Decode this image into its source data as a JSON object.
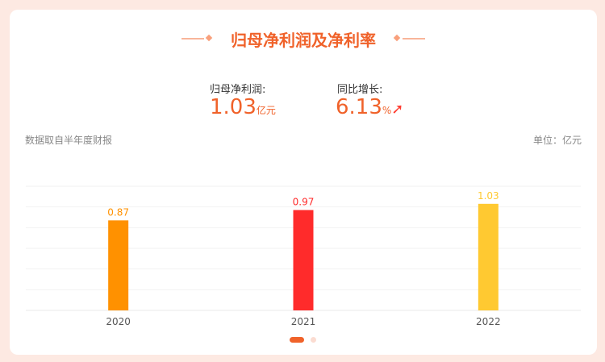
{
  "title": "归母净利润及净利率",
  "stats": {
    "profit_label": "归母净利润:",
    "profit_value": "1.03",
    "profit_unit": "亿元",
    "growth_label": "同比增长:",
    "growth_value": "6.13",
    "growth_unit": "%",
    "growth_icon": "arrow-up-icon"
  },
  "note_left": "数据取自半年度财报",
  "note_right": "单位：亿元",
  "chart_data": {
    "type": "bar",
    "categories": [
      "2020",
      "2021",
      "2022"
    ],
    "values": [
      0.87,
      0.97,
      1.03
    ],
    "value_labels": [
      "0.87",
      "0.97",
      "1.03"
    ],
    "colors": [
      "#ff9100",
      "#ff2b2b",
      "#ffc931"
    ],
    "ylim": [
      0,
      1.2
    ],
    "grid": true,
    "xlabel": "",
    "ylabel": ""
  },
  "pagination": {
    "pages": 2,
    "active": 1
  }
}
